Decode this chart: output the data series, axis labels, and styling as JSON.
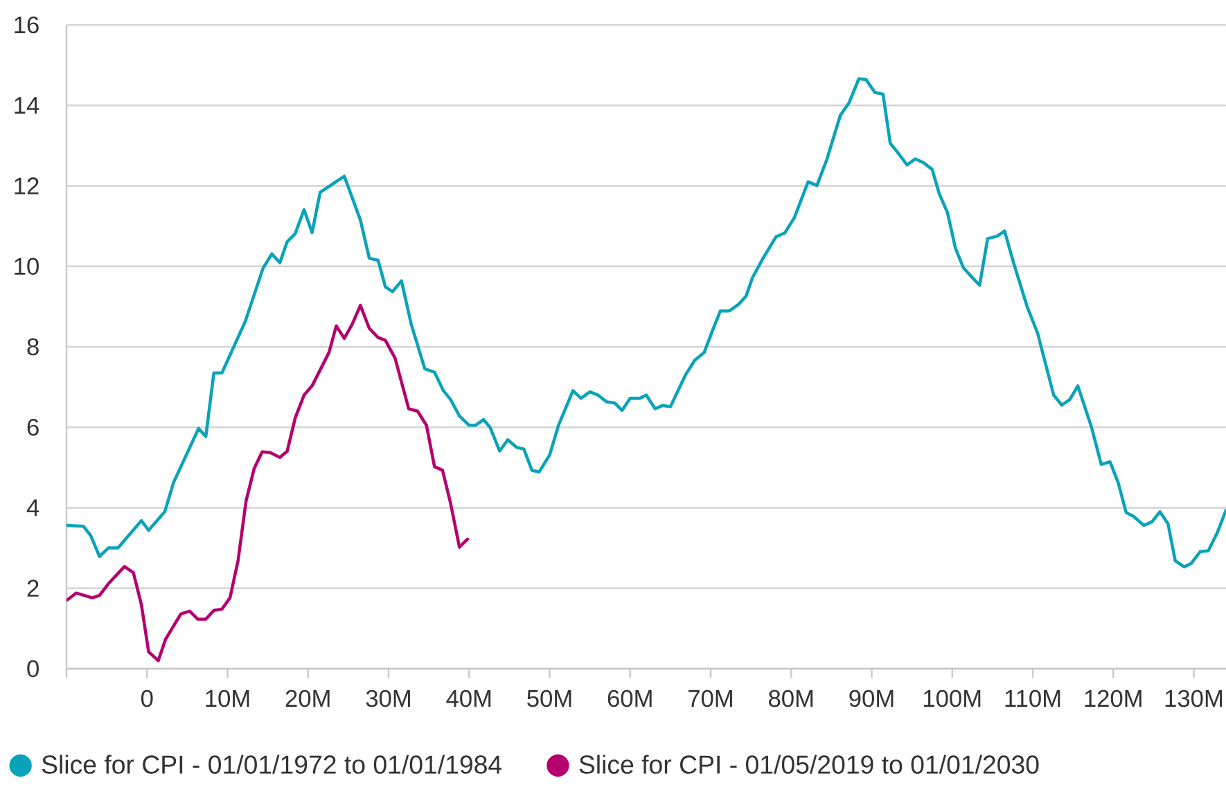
{
  "chart_data": {
    "type": "line",
    "xlim": [
      -10,
      134
    ],
    "xticks": [
      {
        "value": -10,
        "label": null
      },
      0,
      {
        "value": 10,
        "label": "10M"
      },
      {
        "value": 20,
        "label": "20M"
      },
      {
        "value": 30,
        "label": "30M"
      },
      {
        "value": 40,
        "label": "40M"
      },
      {
        "value": 50,
        "label": "50M"
      },
      {
        "value": 60,
        "label": "60M"
      },
      {
        "value": 70,
        "label": "70M"
      },
      {
        "value": 80,
        "label": "80M"
      },
      {
        "value": 90,
        "label": "90M"
      },
      {
        "value": 100,
        "label": "100M"
      },
      {
        "value": 110,
        "label": "110M"
      },
      {
        "value": 120,
        "label": "120M"
      },
      {
        "value": 130,
        "label": "130M"
      }
    ],
    "ylim": [
      0,
      16
    ],
    "yticks": [
      0,
      2,
      4,
      6,
      8,
      10,
      12,
      14,
      16
    ],
    "grid": "y",
    "legend": "bottom left",
    "series": [
      {
        "name": "Slice for CPI - 01/01/1972 to 01/01/1984",
        "color": "#0aa3b8",
        "x": [
          -10,
          -7.9,
          -7.0,
          -5.9,
          -4.8,
          -3.6,
          -0.7,
          0.2,
          2.2,
          3.3,
          6.4,
          7.3,
          8.3,
          9.3,
          12.2,
          14.4,
          15.5,
          16.5,
          17.4,
          18.4,
          19.5,
          20.5,
          21.5,
          24.5,
          26.5,
          27.6,
          28.7,
          29.6,
          30.5,
          31.6,
          32.8,
          34.5,
          35.7,
          36.8,
          37.7,
          38.8,
          40.0,
          40.8,
          41.8,
          42.6,
          43.8,
          44.8,
          45.9,
          46.8,
          47.8,
          48.7,
          50.0,
          51.1,
          52.9,
          53.9,
          55.0,
          56.0,
          57.1,
          58.1,
          59.0,
          60.0,
          61.2,
          62.0,
          63.1,
          64.0,
          65.0,
          66.9,
          68.0,
          69.2,
          70.3,
          71.2,
          72.3,
          73.5,
          74.4,
          75.2,
          76.5,
          78.1,
          79.2,
          80.4,
          82.1,
          83.2,
          84.4,
          86.1,
          87.2,
          88.4,
          89.3,
          90.4,
          91.4,
          92.3,
          93.3,
          94.4,
          95.4,
          96.4,
          97.5,
          98.4,
          99.4,
          100.4,
          101.4,
          102.4,
          103.4,
          104.4,
          105.6,
          106.5,
          107.6,
          109.3,
          110.6,
          112.6,
          113.6,
          114.6,
          115.6,
          117.3,
          118.5,
          119.6,
          120.6,
          121.6,
          122.5,
          123.8,
          124.8,
          125.8,
          126.8,
          127.7,
          128.8,
          129.7,
          130.8,
          131.8,
          132.9,
          134
        ],
        "values": [
          3.56,
          3.54,
          3.31,
          2.79,
          3.0,
          3.0,
          3.68,
          3.44,
          3.9,
          4.63,
          5.97,
          5.77,
          7.35,
          7.35,
          8.63,
          9.95,
          10.31,
          10.09,
          10.61,
          10.81,
          11.41,
          10.84,
          11.84,
          12.24,
          11.15,
          10.2,
          10.15,
          9.49,
          9.37,
          9.64,
          8.57,
          7.45,
          7.37,
          6.91,
          6.69,
          6.28,
          6.05,
          6.05,
          6.19,
          6.0,
          5.41,
          5.69,
          5.5,
          5.46,
          4.93,
          4.89,
          5.31,
          6.05,
          6.91,
          6.72,
          6.88,
          6.8,
          6.63,
          6.6,
          6.42,
          6.72,
          6.72,
          6.8,
          6.46,
          6.54,
          6.51,
          7.31,
          7.66,
          7.86,
          8.44,
          8.89,
          8.89,
          9.06,
          9.26,
          9.72,
          10.2,
          10.73,
          10.83,
          11.21,
          12.1,
          12.01,
          12.64,
          13.75,
          14.07,
          14.66,
          14.64,
          14.32,
          14.28,
          13.06,
          12.81,
          12.52,
          12.67,
          12.58,
          12.41,
          11.8,
          11.34,
          10.45,
          9.96,
          9.74,
          9.53,
          10.69,
          10.75,
          10.88,
          10.1,
          9.0,
          8.34,
          6.8,
          6.55,
          6.69,
          7.03,
          6.0,
          5.08,
          5.14,
          4.63,
          3.88,
          3.79,
          3.56,
          3.65,
          3.9,
          3.6,
          2.68,
          2.53,
          2.62,
          2.91,
          2.93,
          3.37,
          3.94
        ]
      },
      {
        "name": "Slice for CPI - 01/05/2019 to 01/01/2030",
        "color": "#b5006e",
        "x": [
          -9.9,
          -8.8,
          -6.8,
          -5.9,
          -4.8,
          -2.8,
          -1.7,
          -0.7,
          0.2,
          1.4,
          2.3,
          4.2,
          5.3,
          6.3,
          7.3,
          8.3,
          9.3,
          10.3,
          11.3,
          12.3,
          13.3,
          14.3,
          15.3,
          16.5,
          17.4,
          18.4,
          19.5,
          20.5,
          22.6,
          23.5,
          24.5,
          25.5,
          26.5,
          27.6,
          28.7,
          29.6,
          30.8,
          32.5,
          33.6,
          34.7,
          35.7,
          36.7,
          37.7,
          38.8,
          39.8
        ],
        "values": [
          1.71,
          1.88,
          1.76,
          1.82,
          2.11,
          2.54,
          2.39,
          1.59,
          0.42,
          0.2,
          0.73,
          1.36,
          1.43,
          1.23,
          1.23,
          1.45,
          1.48,
          1.76,
          2.68,
          4.17,
          4.97,
          5.39,
          5.37,
          5.25,
          5.4,
          6.23,
          6.8,
          7.03,
          7.86,
          8.52,
          8.21,
          8.57,
          9.03,
          8.46,
          8.23,
          8.16,
          7.72,
          6.46,
          6.4,
          6.05,
          5.02,
          4.93,
          4.11,
          3.02,
          3.22
        ]
      }
    ]
  }
}
